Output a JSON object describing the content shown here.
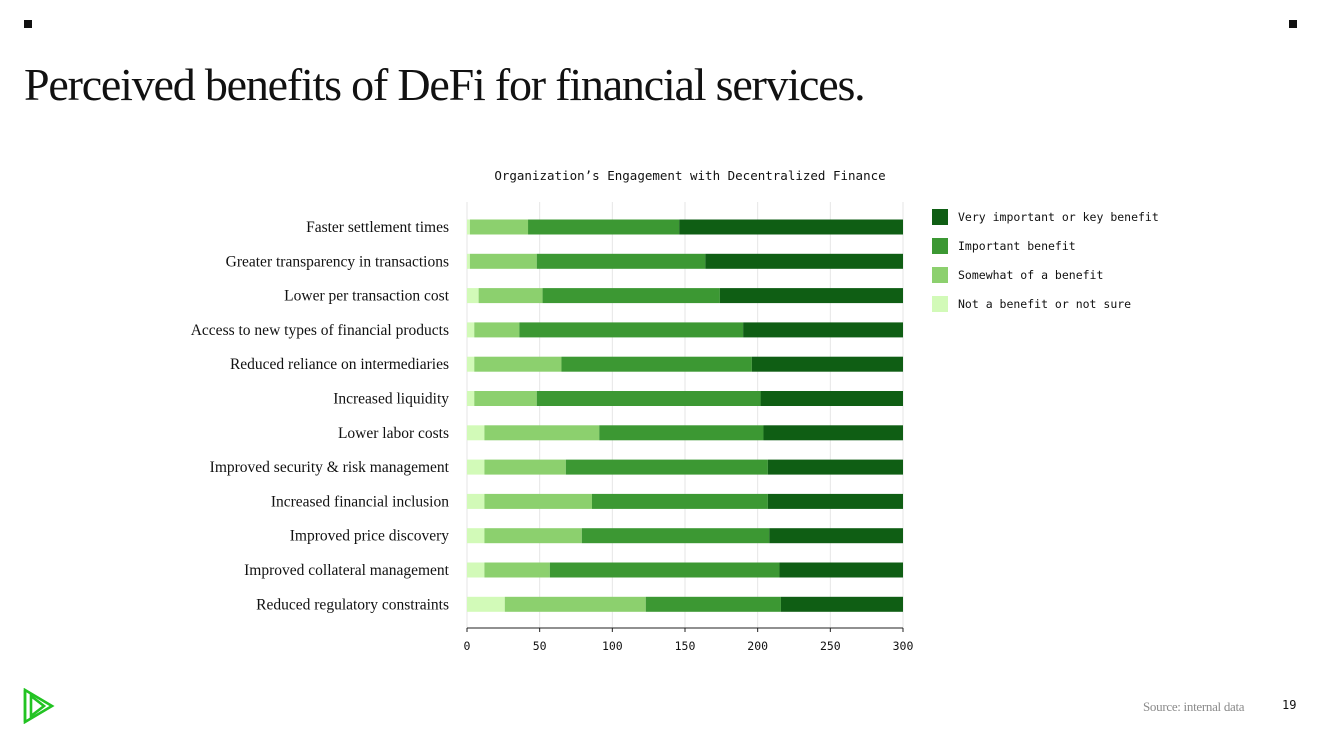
{
  "page": {
    "title": "Perceived benefits of DeFi for financial services.",
    "source": "Source: internal data",
    "page_number": "19"
  },
  "colors": {
    "very_important": "#0f5e14",
    "important": "#3c9833",
    "somewhat": "#8cd06e",
    "not_benefit": "#d2fab8"
  },
  "chart_data": {
    "type": "bar",
    "orientation": "horizontal",
    "stacked": true,
    "title": "Organization’s Engagement with Decentralized Finance",
    "xlim": [
      0,
      300
    ],
    "xticks": [
      0,
      50,
      100,
      150,
      200,
      250,
      300
    ],
    "grid": true,
    "legend_position": "top-right",
    "categories": [
      "Faster settlement times",
      "Greater transparency in transactions",
      "Lower per transaction cost",
      "Access to new types of financial products",
      "Reduced reliance on intermediaries",
      "Increased liquidity",
      "Lower labor costs",
      "Improved security & risk management",
      "Increased financial inclusion",
      "Improved price discovery",
      "Improved collateral management",
      "Reduced regulatory constraints"
    ],
    "series": [
      {
        "name": "Not a benefit or not sure",
        "color_key": "not_benefit",
        "values": [
          2,
          2,
          8,
          5,
          5,
          5,
          12,
          12,
          12,
          12,
          12,
          26
        ]
      },
      {
        "name": "Somewhat of a benefit",
        "color_key": "somewhat",
        "values": [
          40,
          46,
          44,
          31,
          60,
          43,
          79,
          56,
          74,
          67,
          45,
          97
        ]
      },
      {
        "name": "Important benefit",
        "color_key": "important",
        "values": [
          104,
          116,
          122,
          154,
          131,
          154,
          113,
          139,
          121,
          129,
          158,
          93
        ]
      },
      {
        "name": "Very important or key benefit",
        "color_key": "very_important",
        "values": [
          154,
          136,
          126,
          110,
          104,
          98,
          96,
          93,
          93,
          92,
          85,
          84
        ]
      }
    ],
    "legend_order": [
      "Very important or key benefit",
      "Important benefit",
      "Somewhat of a benefit",
      "Not a benefit or not sure"
    ]
  }
}
